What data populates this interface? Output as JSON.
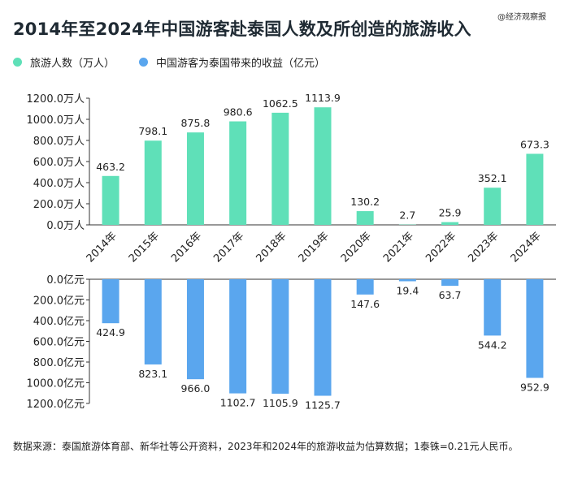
{
  "header": {
    "title": "2014年至2024年中国游客赴泰国人数及所创造的旅游收入",
    "watermark": "@经济观察报"
  },
  "colors": {
    "visitors": "#5fe0b8",
    "revenue": "#5aa6ee"
  },
  "footnote": "数据来源：泰国旅游体育部、新华社等公开资料，2023年和2024年的旅游收益为估算数据；1泰铢=0.21元人民币。",
  "chart_data": {
    "type": "bar",
    "categories": [
      "2014年",
      "2015年",
      "2016年",
      "2017年",
      "2018年",
      "2019年",
      "2020年",
      "2021年",
      "2022年",
      "2023年",
      "2024年"
    ],
    "series": [
      {
        "name": "旅游人数（万人）",
        "values": [
          463.2,
          798.1,
          875.8,
          980.6,
          1062.5,
          1113.9,
          130.2,
          2.7,
          25.9,
          352.1,
          673.3
        ],
        "labels": [
          "463.2",
          "798.1",
          "875.8",
          "980.6",
          "1062.5",
          "1113.9",
          "130.2",
          "2.7",
          "25.9",
          "352.1",
          "673.3"
        ],
        "ylim": [
          0,
          1200
        ],
        "ticks": [
          "0.0万人",
          "200.0万人",
          "400.0万人",
          "600.0万人",
          "800.0万人",
          "1000.0万人",
          "1200.0万人"
        ]
      },
      {
        "name": "中国游客为泰国带来的收益（亿元）",
        "values": [
          424.9,
          823.1,
          966.0,
          1102.7,
          1105.9,
          1125.7,
          147.6,
          19.4,
          63.7,
          544.2,
          952.9
        ],
        "labels": [
          "424.9",
          "823.1",
          "966.0",
          "1102.7",
          "1105.9",
          "1125.7",
          "147.6",
          "19.4",
          "63.7",
          "544.2",
          "952.9"
        ],
        "ylim": [
          0,
          1200
        ],
        "ticks": [
          "0.0亿元",
          "200.0亿元",
          "400.0亿元",
          "600.0亿元",
          "800.0亿元",
          "1000.0亿元",
          "1200.0亿元"
        ]
      }
    ]
  }
}
